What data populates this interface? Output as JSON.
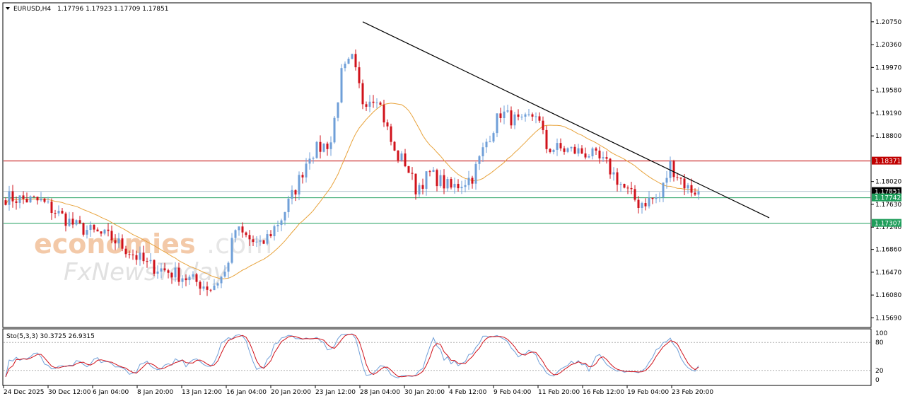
{
  "header": {
    "symbol_label": "EURUSD,H4",
    "ohlc_label": "1.17796 1.17923 1.17709 1.17851",
    "menu_icon": "triangle-down-icon"
  },
  "watermark": {
    "brand1_a": "economies",
    "brand1_b": ".com",
    "brand2": "FxNewsToday"
  },
  "stochastic": {
    "label": "Sto(5,3,3) 30.3725 26.9315",
    "levels": [
      "100",
      "80",
      "20",
      "0"
    ]
  },
  "price_tags": {
    "resistance": "1.18371",
    "current": "1.17851",
    "support_1": "1.17742",
    "support_2": "1.17307"
  },
  "colors": {
    "bull": "#6f9fd8",
    "bear": "#d0121b",
    "ma": "#e8a33c",
    "resistance": "#c00000",
    "support": "#1f9e5b",
    "trendline": "#000000",
    "stoch_main": "#6f9fd8",
    "stoch_signal": "#d0121b"
  },
  "chart_data": {
    "type": "candlestick",
    "symbol": "EURUSD",
    "timeframe": "H4",
    "y_ticks": [
      "1.20750",
      "1.20360",
      "1.19970",
      "1.19580",
      "1.19190",
      "1.18800",
      "1.18020",
      "1.17630",
      "1.17240",
      "1.16860",
      "1.16470",
      "1.16080",
      "1.15690"
    ],
    "ylim": [
      1.1555,
      1.2105
    ],
    "x_ticks": [
      "24 Dec 2025",
      "30 Dec 12:00",
      "6 Jan 04:00",
      "8 Jan 20:00",
      "13 Jan 12:00",
      "16 Jan 04:00",
      "20 Jan 20:00",
      "23 Jan 12:00",
      "28 Jan 04:00",
      "30 Jan 20:00",
      "4 Feb 12:00",
      "9 Feb 04:00",
      "11 Feb 20:00",
      "16 Feb 12:00",
      "19 Feb 04:00",
      "23 Feb 20:00"
    ],
    "close_anchors": [
      [
        0,
        1.1775
      ],
      [
        10,
        1.1768
      ],
      [
        20,
        1.1725
      ],
      [
        30,
        1.1705
      ],
      [
        40,
        1.166
      ],
      [
        50,
        1.164
      ],
      [
        58,
        1.162
      ],
      [
        62,
        1.1645
      ],
      [
        65,
        1.172
      ],
      [
        72,
        1.169
      ],
      [
        78,
        1.174
      ],
      [
        82,
        1.179
      ],
      [
        86,
        1.185
      ],
      [
        92,
        1.187
      ],
      [
        95,
        1.1985
      ],
      [
        98,
        1.201
      ],
      [
        101,
        1.194
      ],
      [
        105,
        1.195
      ],
      [
        110,
        1.185
      ],
      [
        113,
        1.1835
      ],
      [
        116,
        1.179
      ],
      [
        120,
        1.1815
      ],
      [
        126,
        1.179
      ],
      [
        132,
        1.181
      ],
      [
        136,
        1.187
      ],
      [
        140,
        1.192
      ],
      [
        146,
        1.19
      ],
      [
        150,
        1.192
      ],
      [
        153,
        1.186
      ],
      [
        160,
        1.1855
      ],
      [
        165,
        1.185
      ],
      [
        170,
        1.183
      ],
      [
        175,
        1.179
      ],
      [
        179,
        1.1765
      ],
      [
        185,
        1.1775
      ],
      [
        188,
        1.183
      ],
      [
        193,
        1.179
      ],
      [
        196,
        1.1785
      ]
    ],
    "bar_count": 197,
    "last_bar": {
      "open": 1.17796,
      "high": 1.17923,
      "low": 1.17709,
      "close": 1.17851
    },
    "horizontal_levels": [
      1.18371,
      1.17742,
      1.17307
    ],
    "trendline": {
      "from": {
        "bar": 101,
        "price": 1.2075
      },
      "to": {
        "bar": 216,
        "price": 1.174
      }
    },
    "moving_average": {
      "period": 20,
      "label": ""
    },
    "stochastic": {
      "k": 30.3725,
      "d": 26.9315,
      "levels": [
        80,
        20
      ]
    },
    "grid": false
  }
}
